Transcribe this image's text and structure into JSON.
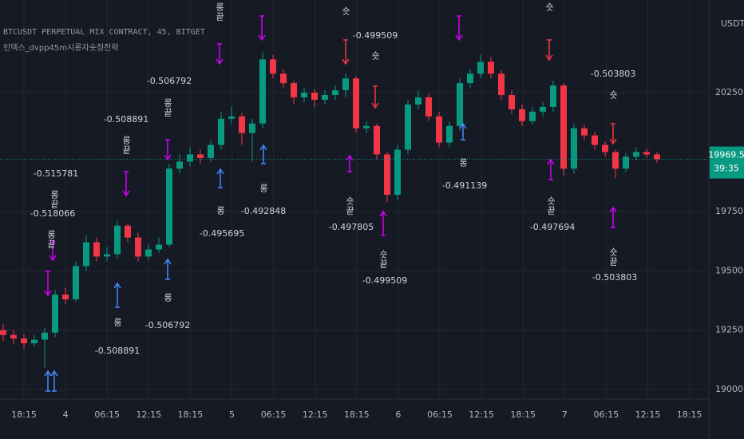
{
  "chart_data": {
    "type": "candlestick",
    "title": "BTCUSDT PERPETUAL MIX CONTRACT, 45, BITGET",
    "subtitle": "인덱스_dvpp45m시롱자숏청전략",
    "y_axis_label": "USDT",
    "countdown": "39:35",
    "up_color": "#089981",
    "down_color": "#f23645",
    "grid": true,
    "ylim": [
      18960,
      20640
    ],
    "yticks": [
      {
        "value": 19000,
        "label": "19000.0"
      },
      {
        "value": 19250,
        "label": "19250.0"
      },
      {
        "value": 19500,
        "label": "19500.0"
      },
      {
        "value": 19750,
        "label": "19750.0"
      },
      {
        "value": 20250,
        "label": "20250.0"
      }
    ],
    "xtick_labels": [
      "18:15",
      "4",
      "06:15",
      "12:15",
      "18:15",
      "5",
      "06:15",
      "12:15",
      "18:15",
      "6",
      "06:15",
      "12:15",
      "18:15",
      "7",
      "06:15",
      "12:15",
      "18:15"
    ],
    "ohlc": [
      [
        19250,
        19275,
        19205,
        19230
      ],
      [
        19230,
        19250,
        19190,
        19215
      ],
      [
        19215,
        19235,
        19170,
        19195
      ],
      [
        19195,
        19230,
        19180,
        19210
      ],
      [
        19210,
        19260,
        19090,
        19240
      ],
      [
        19240,
        19420,
        19220,
        19400
      ],
      [
        19400,
        19430,
        19360,
        19380
      ],
      [
        19380,
        19540,
        19370,
        19520
      ],
      [
        19520,
        19650,
        19500,
        19620
      ],
      [
        19620,
        19640,
        19540,
        19560
      ],
      [
        19560,
        19600,
        19540,
        19570
      ],
      [
        19570,
        19710,
        19550,
        19690
      ],
      [
        19690,
        19700,
        19620,
        19640
      ],
      [
        19640,
        19660,
        19540,
        19560
      ],
      [
        19560,
        19610,
        19545,
        19590
      ],
      [
        19590,
        19640,
        19575,
        19610
      ],
      [
        19610,
        19950,
        19600,
        19930
      ],
      [
        19930,
        19990,
        19910,
        19960
      ],
      [
        19960,
        20020,
        19940,
        19990
      ],
      [
        19990,
        20010,
        19950,
        19975
      ],
      [
        19975,
        20050,
        19960,
        20030
      ],
      [
        20030,
        20170,
        20010,
        20140
      ],
      [
        20140,
        20190,
        20120,
        20150
      ],
      [
        20150,
        20165,
        20030,
        20080
      ],
      [
        20080,
        20140,
        19960,
        20120
      ],
      [
        20120,
        20420,
        20100,
        20390
      ],
      [
        20390,
        20410,
        20310,
        20330
      ],
      [
        20330,
        20350,
        20270,
        20290
      ],
      [
        20290,
        20300,
        20200,
        20230
      ],
      [
        20230,
        20270,
        20210,
        20250
      ],
      [
        20250,
        20265,
        20190,
        20220
      ],
      [
        20220,
        20260,
        20200,
        20240
      ],
      [
        20240,
        20280,
        20220,
        20260
      ],
      [
        20260,
        20330,
        20230,
        20310
      ],
      [
        20310,
        20320,
        20080,
        20100
      ],
      [
        20100,
        20130,
        20080,
        20110
      ],
      [
        20110,
        20120,
        19970,
        19990
      ],
      [
        19990,
        20000,
        19790,
        19820
      ],
      [
        19820,
        20030,
        19800,
        20010
      ],
      [
        20010,
        20220,
        19990,
        20200
      ],
      [
        20200,
        20260,
        20180,
        20230
      ],
      [
        20230,
        20245,
        20130,
        20150
      ],
      [
        20150,
        20170,
        20020,
        20040
      ],
      [
        20040,
        20130,
        20020,
        20110
      ],
      [
        20110,
        20310,
        20090,
        20290
      ],
      [
        20290,
        20350,
        20270,
        20330
      ],
      [
        20330,
        20410,
        20310,
        20380
      ],
      [
        20380,
        20400,
        20310,
        20330
      ],
      [
        20330,
        20345,
        20220,
        20240
      ],
      [
        20240,
        20260,
        20160,
        20180
      ],
      [
        20180,
        20200,
        20110,
        20130
      ],
      [
        20130,
        20190,
        20115,
        20170
      ],
      [
        20170,
        20210,
        20150,
        20190
      ],
      [
        20190,
        20300,
        20170,
        20280
      ],
      [
        20280,
        20290,
        19900,
        19930
      ],
      [
        19930,
        20120,
        19910,
        20100
      ],
      [
        20100,
        20115,
        20050,
        20070
      ],
      [
        20070,
        20085,
        20010,
        20030
      ],
      [
        20030,
        20045,
        19980,
        20000
      ],
      [
        20000,
        20010,
        19890,
        19930
      ],
      [
        19930,
        19995,
        19915,
        19980
      ],
      [
        19980,
        20020,
        19965,
        20000
      ],
      [
        20000,
        20015,
        19975,
        19990
      ],
      [
        19990,
        20000,
        19955,
        19969.5
      ]
    ],
    "annotations": [
      "롱끝",
      "숏",
      "-0.499509",
      "숏",
      "숏",
      "-0.506792",
      "롱끝",
      "-0.508891",
      "롱끝",
      "-0.515781",
      "롱끝",
      "-0.518066",
      "롱끝",
      "-0.503803",
      "숏",
      "롱",
      "-0.495695",
      "롱",
      "-0.492848",
      "숏끝",
      "-0.497805",
      "롱",
      "-0.491139",
      "숏끝",
      "-0.497694",
      "숏끝",
      "-0.499509",
      "숏끝",
      "-0.503803",
      "롱",
      "-0.508891",
      "롱",
      "-0.506792"
    ]
  }
}
